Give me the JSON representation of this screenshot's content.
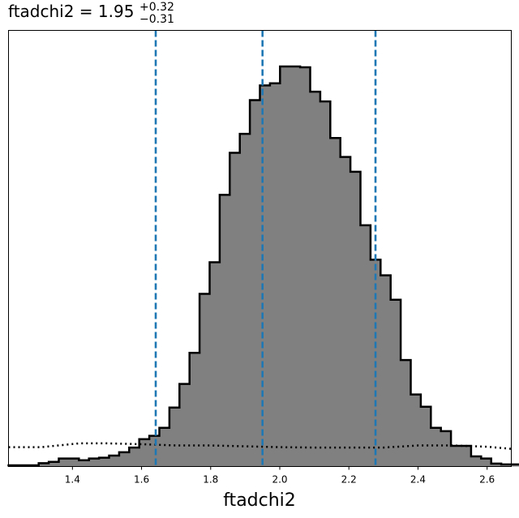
{
  "chart_data": {
    "type": "histogram",
    "title": {
      "parameter": "ftadchi2",
      "equals": " = ",
      "value": "1.95",
      "upper_error": "+0.32",
      "lower_error": "−0.31"
    },
    "xlabel": "ftadchi2",
    "ylabel": "",
    "xlim": [
      1.215,
      2.67
    ],
    "ylim": [
      0,
      1
    ],
    "x_ticks": [
      1.4,
      1.6,
      1.8,
      2.0,
      2.2,
      2.4,
      2.6
    ],
    "x_tick_labels": [
      "1.4",
      "1.6",
      "1.8",
      "2.0",
      "2.2",
      "2.4",
      "2.6"
    ],
    "y_ticks_visible": false,
    "grid": false,
    "histogram": {
      "bin_start": 1.215,
      "bin_width": 0.0291,
      "heights": [
        0.003,
        0.003,
        0.003,
        0.008,
        0.011,
        0.019,
        0.019,
        0.015,
        0.019,
        0.021,
        0.026,
        0.034,
        0.045,
        0.065,
        0.073,
        0.092,
        0.14,
        0.196,
        0.27,
        0.41,
        0.485,
        0.645,
        0.745,
        0.79,
        0.87,
        0.905,
        0.91,
        0.95,
        0.95,
        0.948,
        0.89,
        0.867,
        0.78,
        0.735,
        0.7,
        0.573,
        0.491,
        0.454,
        0.396,
        0.253,
        0.171,
        0.142,
        0.092,
        0.084,
        0.049,
        0.049,
        0.024,
        0.019,
        0.007,
        0.005,
        0.005
      ],
      "fill_color": "#808080",
      "edge_color": "#000000"
    },
    "prior": {
      "x": [
        1.215,
        1.31,
        1.42,
        1.5,
        1.6,
        1.7,
        1.8,
        1.9,
        2.0,
        2.1,
        2.2,
        2.3,
        2.4,
        2.5,
        2.6,
        2.67
      ],
      "y": [
        0.046,
        0.046,
        0.055,
        0.055,
        0.053,
        0.05,
        0.05,
        0.048,
        0.046,
        0.045,
        0.045,
        0.045,
        0.05,
        0.05,
        0.047,
        0.042
      ],
      "style": "dotted",
      "color": "#000000"
    },
    "vlines": {
      "x": [
        1.641,
        1.95,
        2.277
      ],
      "style": "dashed",
      "color": "#1f77b4"
    }
  }
}
